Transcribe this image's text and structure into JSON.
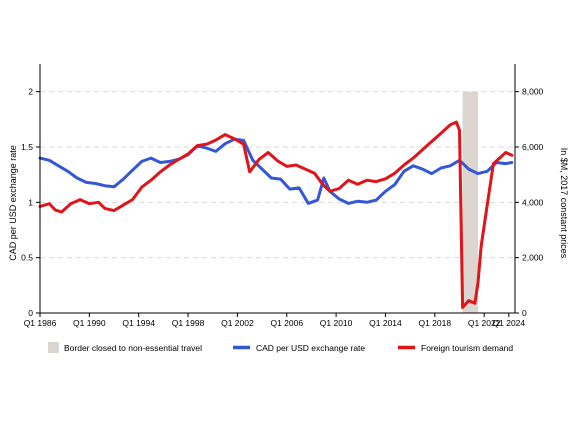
{
  "chart_data": {
    "type": "line",
    "title": "",
    "xlabel": "",
    "ylabel_left": "CAD per USD exchange rate",
    "ylabel_right": "In $M, 2017 constant prices",
    "x_ticks": [
      "Q1 1986",
      "Q1 1990",
      "Q1 1994",
      "Q1 1998",
      "Q1 2002",
      "Q1 2006",
      "Q1 2010",
      "Q1 2014",
      "Q1 2018",
      "Q1 2022",
      "Q1 2024"
    ],
    "x_range": [
      1986.0,
      2024.5
    ],
    "y_left_range": [
      0,
      2.25
    ],
    "y_left_ticks": [
      "0",
      "0.5",
      "1",
      "1.5",
      "2"
    ],
    "y_right_range": [
      0,
      9000
    ],
    "y_right_ticks": [
      "0",
      "2,000",
      "4,000",
      "6,000",
      "8,000"
    ],
    "gridlines": "horizontal-dashed",
    "legend_position": "bottom",
    "shaded_period": {
      "name": "Border closed to non-essential travel",
      "start": 2020.25,
      "end": 2021.5,
      "color": "#ddd5cf"
    },
    "series": [
      {
        "name": "CAD per USD exchange rate",
        "axis": "left",
        "color": "#3457d5",
        "points": [
          [
            1986.0,
            1.4
          ],
          [
            1986.75,
            1.38
          ],
          [
            1987.5,
            1.33
          ],
          [
            1988.25,
            1.28
          ],
          [
            1989.0,
            1.22
          ],
          [
            1989.75,
            1.18
          ],
          [
            1990.5,
            1.17
          ],
          [
            1991.25,
            1.15
          ],
          [
            1992.0,
            1.14
          ],
          [
            1992.75,
            1.21
          ],
          [
            1993.5,
            1.29
          ],
          [
            1994.25,
            1.37
          ],
          [
            1995.0,
            1.4
          ],
          [
            1995.75,
            1.36
          ],
          [
            1996.5,
            1.37
          ],
          [
            1997.25,
            1.39
          ],
          [
            1998.0,
            1.43
          ],
          [
            1998.75,
            1.51
          ],
          [
            1999.5,
            1.49
          ],
          [
            2000.25,
            1.46
          ],
          [
            2001.0,
            1.53
          ],
          [
            2001.75,
            1.57
          ],
          [
            2002.5,
            1.56
          ],
          [
            2003.25,
            1.38
          ],
          [
            2004.0,
            1.3
          ],
          [
            2004.75,
            1.22
          ],
          [
            2005.5,
            1.21
          ],
          [
            2006.25,
            1.12
          ],
          [
            2007.0,
            1.13
          ],
          [
            2007.75,
            0.99
          ],
          [
            2008.5,
            1.02
          ],
          [
            2009.0,
            1.22
          ],
          [
            2009.5,
            1.1
          ],
          [
            2010.25,
            1.03
          ],
          [
            2011.0,
            0.99
          ],
          [
            2011.75,
            1.01
          ],
          [
            2012.5,
            1.0
          ],
          [
            2013.25,
            1.02
          ],
          [
            2014.0,
            1.1
          ],
          [
            2014.75,
            1.16
          ],
          [
            2015.5,
            1.28
          ],
          [
            2016.25,
            1.33
          ],
          [
            2017.0,
            1.3
          ],
          [
            2017.75,
            1.26
          ],
          [
            2018.5,
            1.31
          ],
          [
            2019.25,
            1.33
          ],
          [
            2020.0,
            1.38
          ],
          [
            2020.75,
            1.3
          ],
          [
            2021.5,
            1.26
          ],
          [
            2022.25,
            1.28
          ],
          [
            2023.0,
            1.36
          ],
          [
            2023.75,
            1.35
          ],
          [
            2024.25,
            1.36
          ]
        ]
      },
      {
        "name": "Foreign tourism demand",
        "axis": "right",
        "color": "#e0141b",
        "points": [
          [
            1986.0,
            3850
          ],
          [
            1986.75,
            3950
          ],
          [
            1987.25,
            3720
          ],
          [
            1987.75,
            3650
          ],
          [
            1988.5,
            3950
          ],
          [
            1989.25,
            4100
          ],
          [
            1990.0,
            3950
          ],
          [
            1990.75,
            4000
          ],
          [
            1991.25,
            3780
          ],
          [
            1992.0,
            3700
          ],
          [
            1992.75,
            3900
          ],
          [
            1993.5,
            4100
          ],
          [
            1994.25,
            4550
          ],
          [
            1995.0,
            4800
          ],
          [
            1995.75,
            5100
          ],
          [
            1996.5,
            5350
          ],
          [
            1997.25,
            5550
          ],
          [
            1998.0,
            5750
          ],
          [
            1998.75,
            6050
          ],
          [
            1999.5,
            6100
          ],
          [
            2000.25,
            6250
          ],
          [
            2001.0,
            6450
          ],
          [
            2001.75,
            6300
          ],
          [
            2002.5,
            6100
          ],
          [
            2003.0,
            5100
          ],
          [
            2003.75,
            5550
          ],
          [
            2004.5,
            5800
          ],
          [
            2005.25,
            5500
          ],
          [
            2006.0,
            5300
          ],
          [
            2006.75,
            5350
          ],
          [
            2007.5,
            5200
          ],
          [
            2008.25,
            5050
          ],
          [
            2009.0,
            4600
          ],
          [
            2009.5,
            4400
          ],
          [
            2010.25,
            4500
          ],
          [
            2011.0,
            4800
          ],
          [
            2011.75,
            4650
          ],
          [
            2012.5,
            4800
          ],
          [
            2013.25,
            4750
          ],
          [
            2014.0,
            4850
          ],
          [
            2014.75,
            5050
          ],
          [
            2015.5,
            5350
          ],
          [
            2016.25,
            5600
          ],
          [
            2017.0,
            5900
          ],
          [
            2017.75,
            6200
          ],
          [
            2018.5,
            6500
          ],
          [
            2019.25,
            6800
          ],
          [
            2019.75,
            6900
          ],
          [
            2020.0,
            6600
          ],
          [
            2020.25,
            200
          ],
          [
            2020.75,
            450
          ],
          [
            2021.25,
            350
          ],
          [
            2021.5,
            1100
          ],
          [
            2021.75,
            2400
          ],
          [
            2022.25,
            3900
          ],
          [
            2022.75,
            5400
          ],
          [
            2023.25,
            5600
          ],
          [
            2023.75,
            5800
          ],
          [
            2024.25,
            5700
          ]
        ]
      }
    ]
  }
}
